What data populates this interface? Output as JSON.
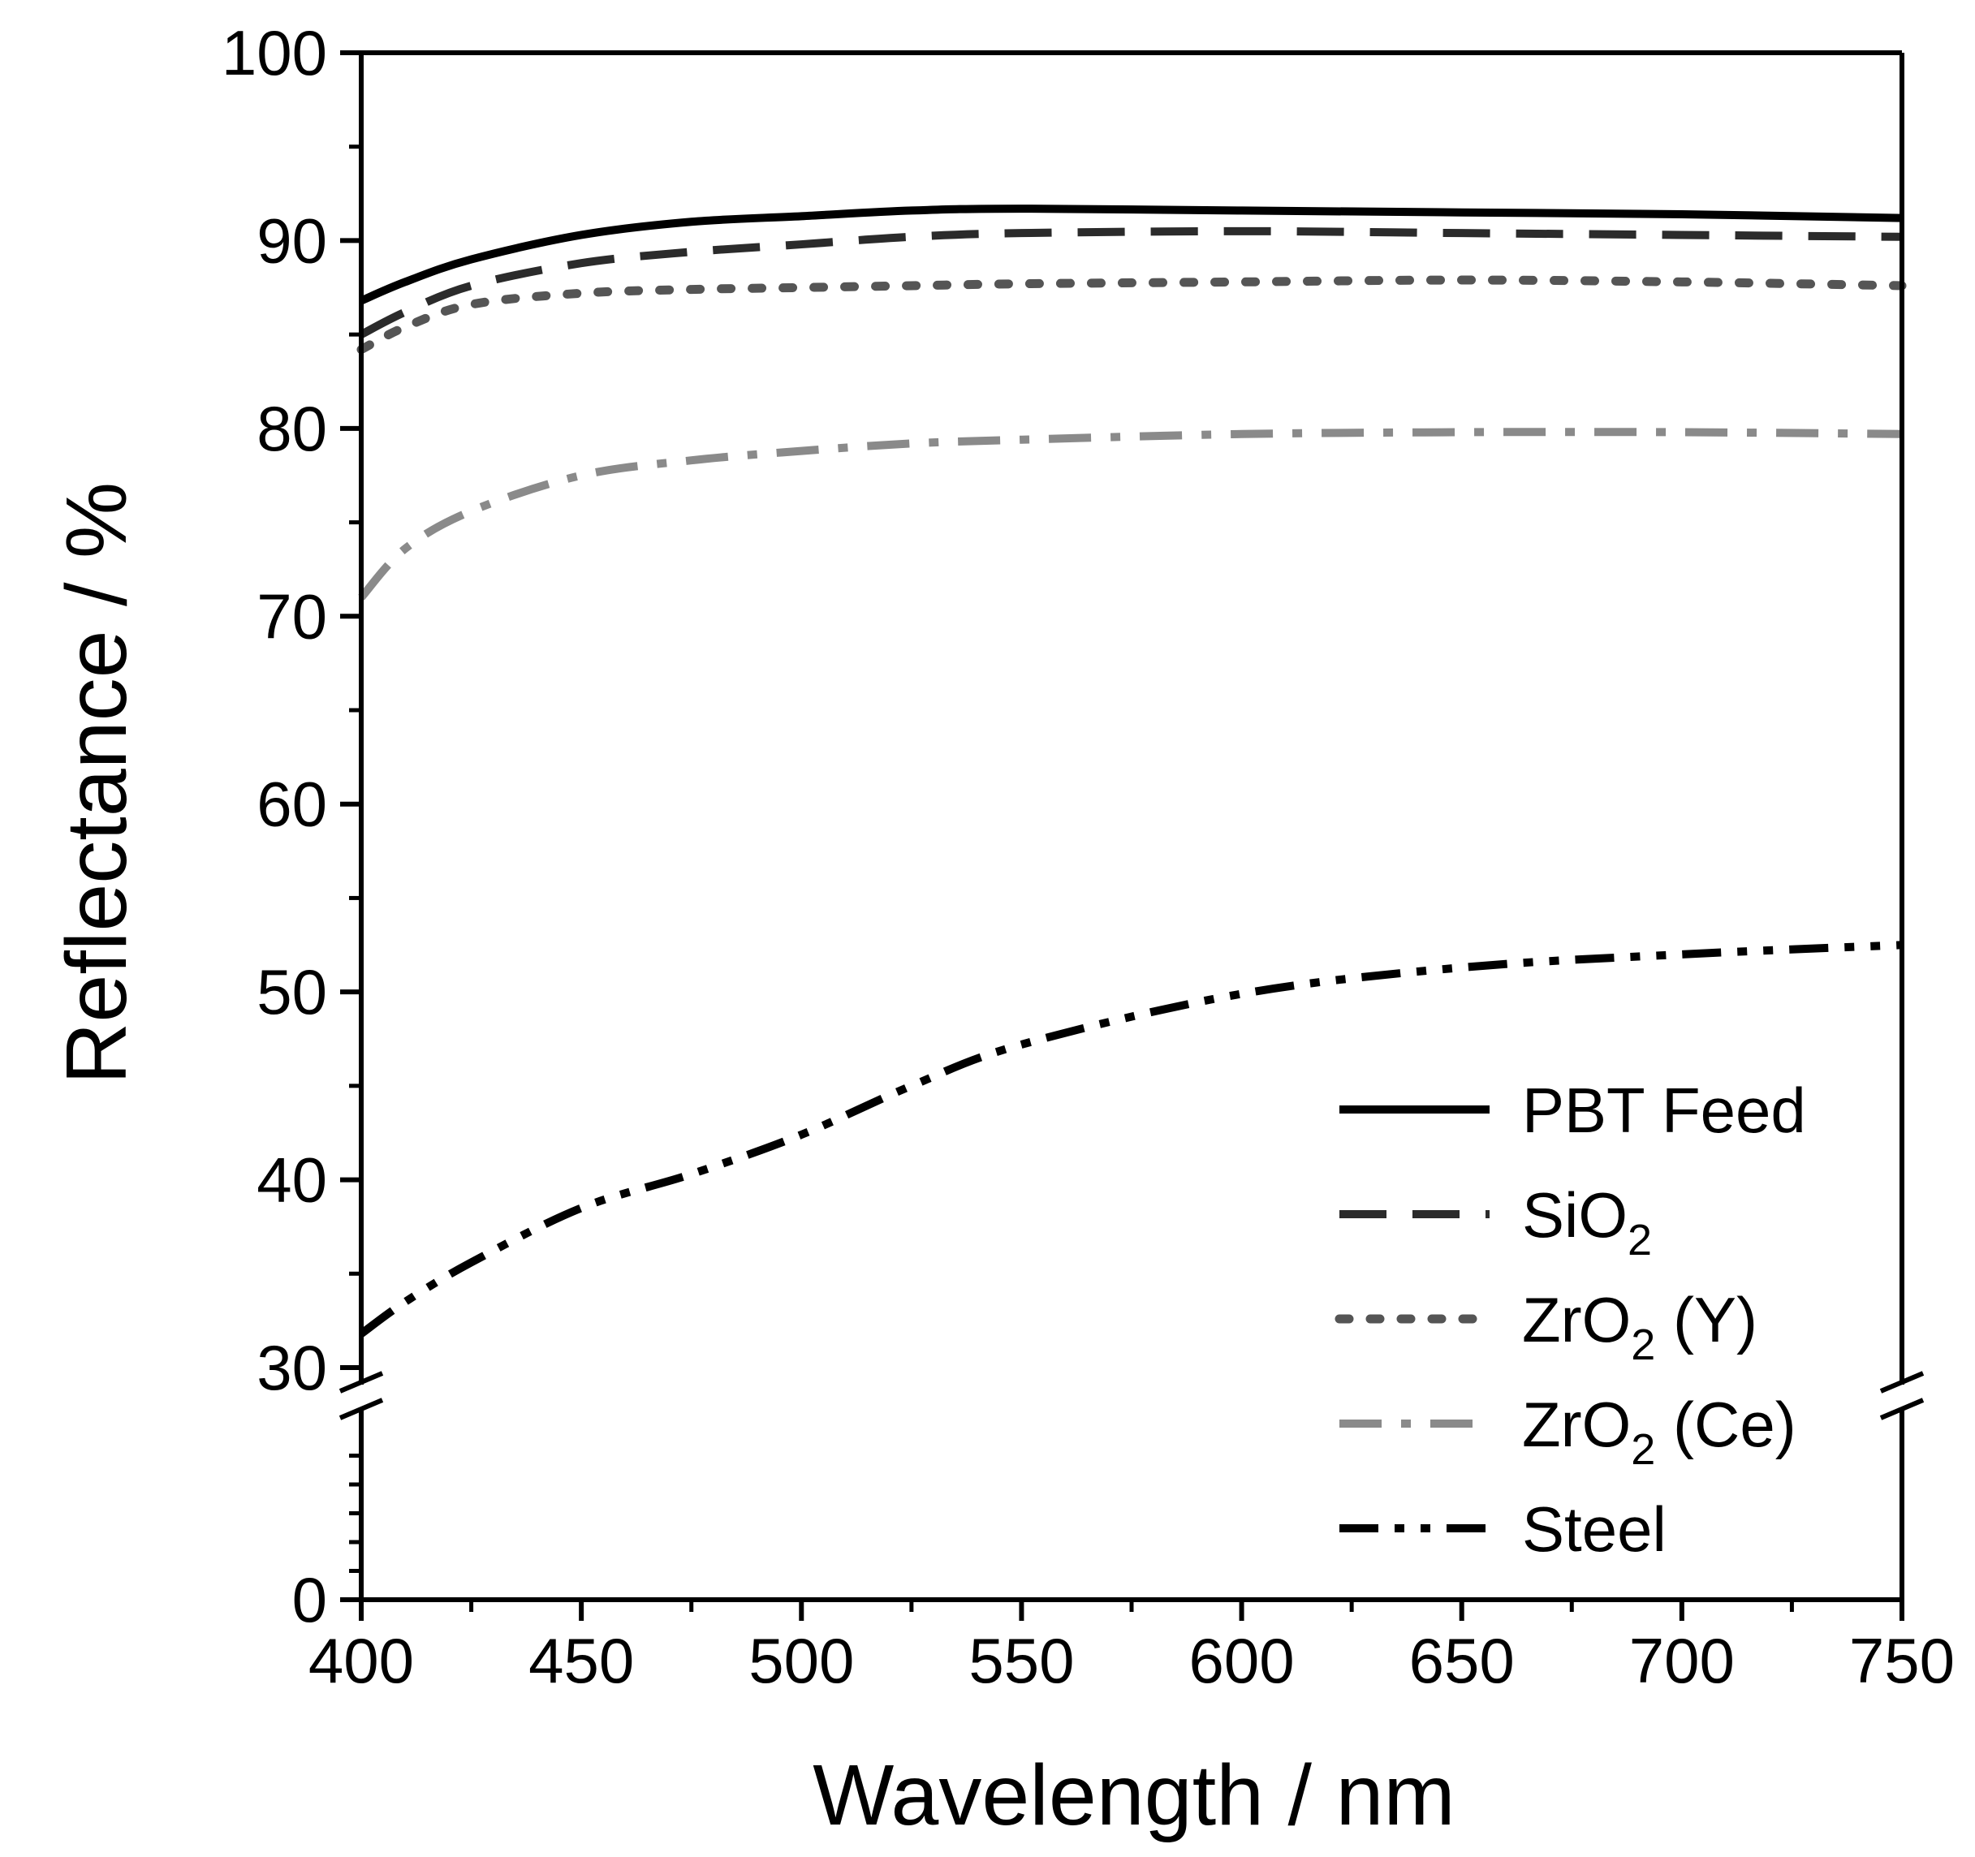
{
  "chart_data": {
    "type": "line",
    "title": "",
    "xlabel": "Wavelength / nm",
    "ylabel": "Reflectance / %",
    "xlim": [
      400,
      750
    ],
    "ylim_upper": [
      30,
      100
    ],
    "ylim_lower": [
      0,
      30
    ],
    "axis_break": true,
    "x_ticks": [
      400,
      450,
      500,
      550,
      600,
      650,
      700,
      750
    ],
    "y_ticks": [
      0,
      30,
      40,
      50,
      60,
      70,
      80,
      90,
      100
    ],
    "grid": false,
    "legend_position": "bottom-right",
    "x": [
      400,
      410,
      425,
      450,
      475,
      500,
      525,
      550,
      600,
      650,
      700,
      750
    ],
    "series": [
      {
        "name": "PBT Feed",
        "name_main": "PBT Feed",
        "name_sub": "",
        "name_tail": "",
        "style": "solid",
        "color": "#000000",
        "values": [
          86.8,
          87.8,
          89.0,
          90.3,
          91.0,
          91.3,
          91.6,
          91.7,
          91.6,
          91.5,
          91.4,
          91.2
        ]
      },
      {
        "name": "SiO2",
        "name_main": "SiO",
        "name_sub": "2",
        "name_tail": "",
        "style": "dashed",
        "color": "#2b2b2b",
        "values": [
          85.0,
          86.2,
          87.6,
          88.8,
          89.4,
          89.8,
          90.2,
          90.4,
          90.5,
          90.4,
          90.3,
          90.2
        ]
      },
      {
        "name": "ZrO2 (Y)",
        "name_main": "ZrO",
        "name_sub": "2",
        "name_tail": " (Y)",
        "style": "dotted",
        "color": "#555555",
        "values": [
          84.2,
          85.4,
          86.6,
          87.2,
          87.4,
          87.5,
          87.6,
          87.7,
          87.8,
          87.9,
          87.8,
          87.6
        ]
      },
      {
        "name": "ZrO2 (Ce)",
        "name_main": "ZrO",
        "name_sub": "2",
        "name_tail": " (Ce)",
        "style": "dash-dot",
        "color": "#8a8a8a",
        "values": [
          71.0,
          73.6,
          75.6,
          77.5,
          78.3,
          78.8,
          79.2,
          79.4,
          79.7,
          79.8,
          79.8,
          79.7
        ]
      },
      {
        "name": "Steel",
        "name_main": "Steel",
        "name_sub": "",
        "name_tail": "",
        "style": "dash-dot-dot",
        "color": "#000000",
        "values": [
          31.8,
          33.5,
          35.6,
          38.5,
          40.3,
          42.4,
          45.0,
          47.2,
          49.9,
          51.3,
          52.0,
          52.5
        ]
      }
    ]
  }
}
